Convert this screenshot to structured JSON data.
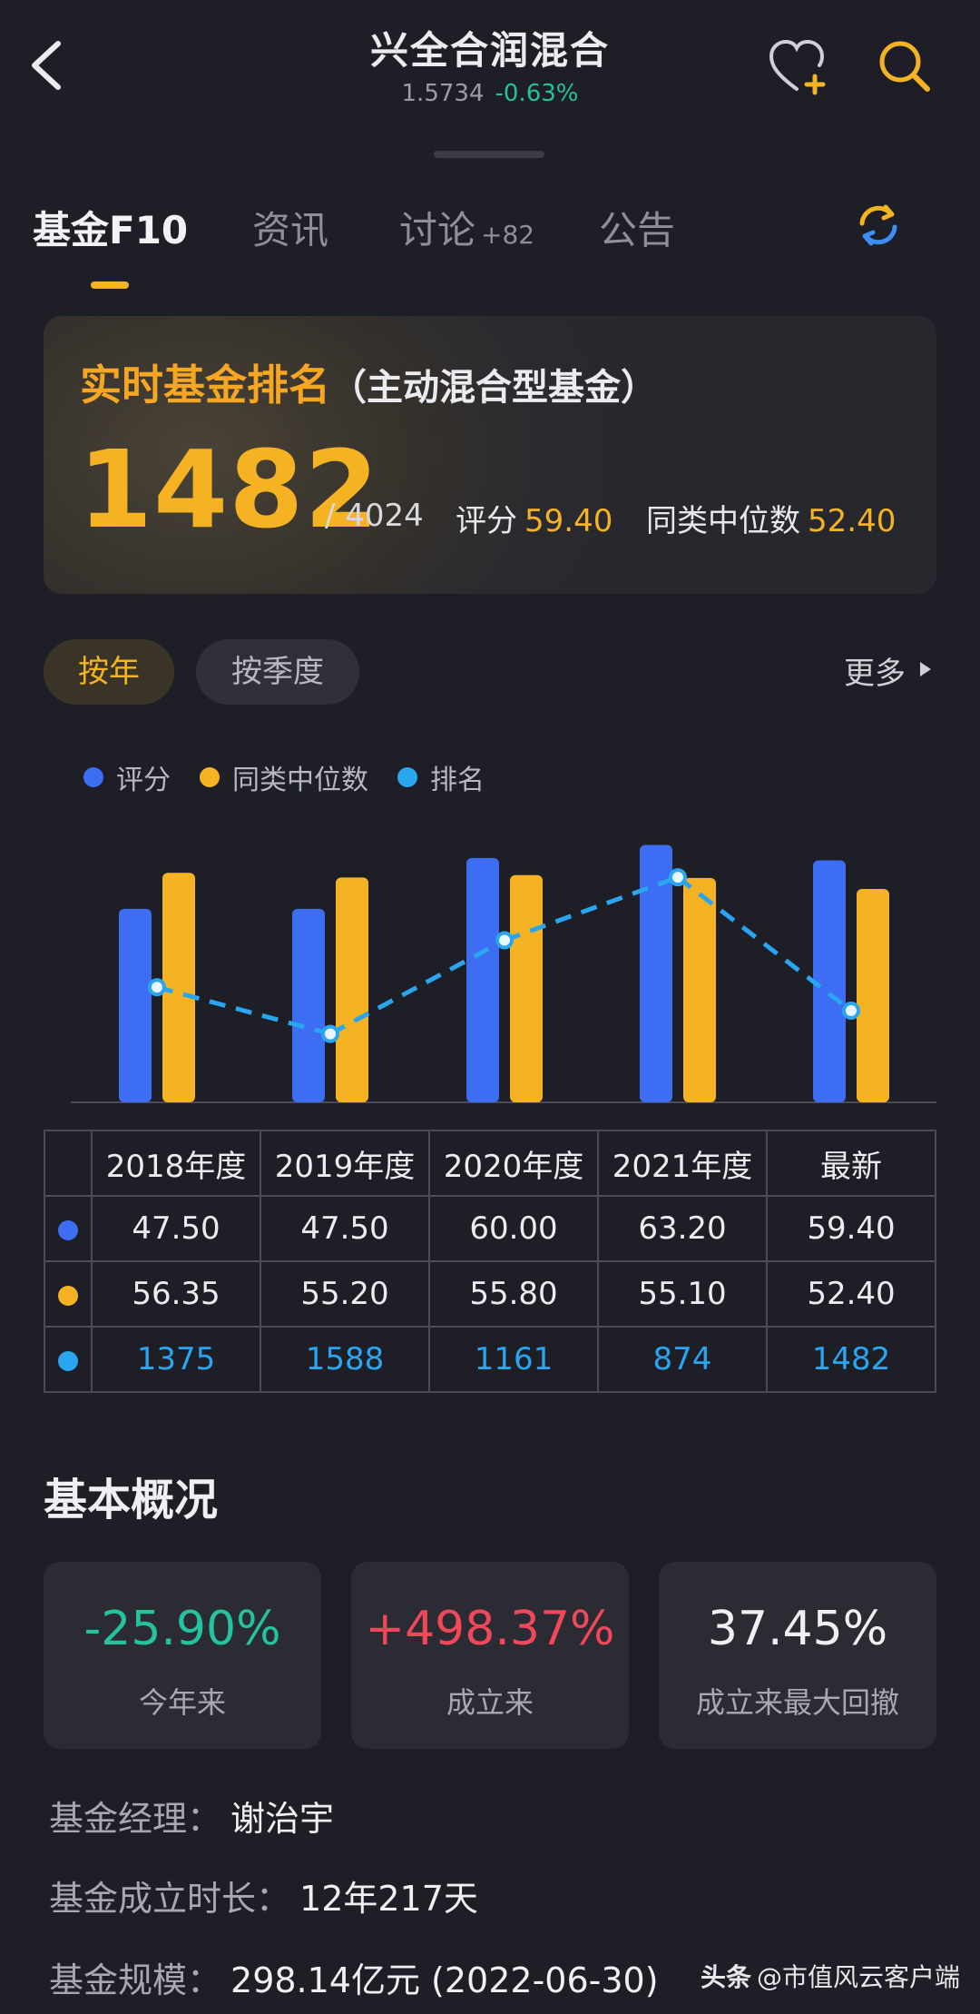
{
  "header": {
    "title": "兴全合润混合",
    "nav": "1.5734",
    "change": "-0.63%"
  },
  "tabs": [
    {
      "label": "基金F10",
      "active": true
    },
    {
      "label": "资讯"
    },
    {
      "label": "讨论",
      "badge": "+82"
    },
    {
      "label": "公告"
    }
  ],
  "ranking": {
    "title": "实时基金排名",
    "category": "（主动混合型基金）",
    "rank": "1482",
    "total": "/ 4024",
    "score_label": "评分",
    "score": "59.40",
    "median_label": "同类中位数",
    "median": "52.40"
  },
  "period_buttons": {
    "year": "按年",
    "quarter": "按季度",
    "more": "更多"
  },
  "legend": [
    {
      "label": "评分",
      "color": "#3d6df2"
    },
    {
      "label": "同类中位数",
      "color": "#f5b324"
    },
    {
      "label": "排名",
      "color": "#2aa5f0"
    }
  ],
  "chart_data": {
    "type": "bar",
    "categories": [
      "2018年度",
      "2019年度",
      "2020年度",
      "2021年度",
      "最新"
    ],
    "series": [
      {
        "name": "评分",
        "type": "bar",
        "color": "#3d6df2",
        "values": [
          47.5,
          47.5,
          60.0,
          63.2,
          59.4
        ]
      },
      {
        "name": "同类中位数",
        "type": "bar",
        "color": "#f5b324",
        "values": [
          56.35,
          55.2,
          55.8,
          55.1,
          52.4
        ]
      },
      {
        "name": "排名",
        "type": "line",
        "style": "dashed",
        "color": "#2aa5f0",
        "values": [
          1375,
          1588,
          1161,
          874,
          1482
        ]
      }
    ],
    "legend_position": "top-left"
  },
  "table": {
    "headers": [
      "2018年度",
      "2019年度",
      "2020年度",
      "2021年度",
      "最新"
    ],
    "rows": [
      {
        "color": "#3d6df2",
        "values": [
          "47.50",
          "47.50",
          "60.00",
          "63.20",
          "59.40"
        ]
      },
      {
        "color": "#f5b324",
        "values": [
          "56.35",
          "55.20",
          "55.80",
          "55.10",
          "52.40"
        ]
      },
      {
        "color": "#2aa5f0",
        "values": [
          "1375",
          "1588",
          "1161",
          "874",
          "1482"
        ]
      }
    ]
  },
  "overview": {
    "title": "基本概况",
    "stats": [
      {
        "value": "-25.90%",
        "label": "今年来",
        "color": "#25c2a0"
      },
      {
        "value": "+498.37%",
        "label": "成立来",
        "color": "#f0485a"
      },
      {
        "value": "37.45%",
        "label": "成立来最大回撤",
        "color": "#f0f0f3"
      }
    ],
    "manager_label": "基金经理：",
    "manager": "谢治宇",
    "age_label": "基金成立时长：",
    "age": "12年217天",
    "size_label": "基金规模：",
    "size": "298.14亿元 (2022-06-30)"
  },
  "watermark": {
    "brand": "头条",
    "account": "@市值风云客户端"
  }
}
